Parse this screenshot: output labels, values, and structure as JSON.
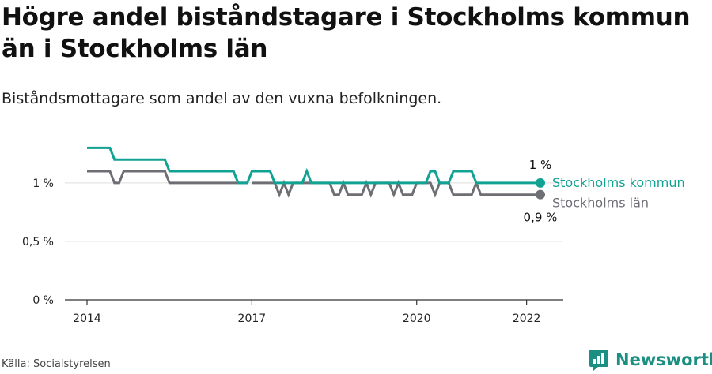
{
  "title": "Högre andel biståndstagare i Stockholms kommun än i Stockholms län",
  "subtitle": "Biståndsmottagare som andel av den vuxna befolkningen.",
  "source": "Källa: Socialstyrelsen",
  "brand": "Newsworthy",
  "colors": {
    "kommun": "#12a293",
    "lan": "#6e6e75",
    "brand": "#1a8f82",
    "grid": "#dddddd"
  },
  "chart_data": {
    "type": "line",
    "title": "Högre andel biståndstagare i Stockholms kommun än i Stockholms län",
    "ylabel": "",
    "xlabel": "",
    "ylim": [
      0,
      1.35
    ],
    "xlim": [
      "2014-01",
      "2022-12"
    ],
    "x_ticks": [
      {
        "value": "2014-01",
        "label": "2014"
      },
      {
        "value": "2017-01",
        "label": "2017"
      },
      {
        "value": "2020-01",
        "label": "2020"
      },
      {
        "value": "2022-01",
        "label": "2022"
      }
    ],
    "y_ticks": [
      {
        "value": 0,
        "label": "0 %"
      },
      {
        "value": 0.5,
        "label": "0,5 %"
      },
      {
        "value": 1,
        "label": "1 %"
      }
    ],
    "series": [
      {
        "name": "Stockholms kommun",
        "end_label": "1 %",
        "points": [
          [
            "2014-01",
            1.3
          ],
          [
            "2014-06",
            1.3
          ],
          [
            "2014-07",
            1.2
          ],
          [
            "2015-06",
            1.2
          ],
          [
            "2015-07",
            1.1
          ],
          [
            "2016-09",
            1.1
          ],
          [
            "2016-10",
            1.0
          ],
          [
            "2016-12",
            1.0
          ],
          [
            "2017-01",
            1.1
          ],
          [
            "2017-05",
            1.1
          ],
          [
            "2017-06",
            1.0
          ],
          [
            "2017-12",
            1.0
          ],
          [
            "2018-01",
            1.1
          ],
          [
            "2018-02",
            1.0
          ],
          [
            "2020-03",
            1.0
          ],
          [
            "2020-04",
            1.1
          ],
          [
            "2020-05",
            1.1
          ],
          [
            "2020-06",
            1.0
          ],
          [
            "2020-08",
            1.0
          ],
          [
            "2020-09",
            1.1
          ],
          [
            "2021-01",
            1.1
          ],
          [
            "2021-02",
            1.0
          ],
          [
            "2022-04",
            1.0
          ]
        ]
      },
      {
        "name": "Stockholms län",
        "end_label": "0,9 %",
        "points": [
          [
            "2014-01",
            1.1
          ],
          [
            "2014-06",
            1.1
          ],
          [
            "2014-07",
            1.0
          ],
          [
            "2014-08",
            1.0
          ],
          [
            "2014-09",
            1.1
          ],
          [
            "2015-06",
            1.1
          ],
          [
            "2015-07",
            1.0
          ],
          [
            "2016-12",
            1.0
          ],
          null,
          [
            "2017-01",
            1.0
          ],
          [
            "2017-06",
            1.0
          ],
          [
            "2017-07",
            0.9
          ],
          [
            "2017-08",
            1.0
          ],
          [
            "2017-09",
            0.9
          ],
          [
            "2017-10",
            1.0
          ],
          [
            "2018-06",
            1.0
          ],
          [
            "2018-07",
            0.9
          ],
          [
            "2018-08",
            0.9
          ],
          [
            "2018-09",
            1.0
          ],
          [
            "2018-10",
            0.9
          ],
          [
            "2019-01",
            0.9
          ],
          [
            "2019-02",
            1.0
          ],
          [
            "2019-03",
            0.9
          ],
          [
            "2019-04",
            1.0
          ],
          [
            "2019-07",
            1.0
          ],
          [
            "2019-08",
            0.9
          ],
          [
            "2019-09",
            1.0
          ],
          [
            "2019-10",
            0.9
          ],
          [
            "2019-12",
            0.9
          ],
          [
            "2020-01",
            1.0
          ],
          [
            "2020-04",
            1.0
          ],
          [
            "2020-05",
            0.9
          ],
          [
            "2020-06",
            1.0
          ],
          [
            "2020-08",
            1.0
          ],
          [
            "2020-09",
            0.9
          ],
          [
            "2021-01",
            0.9
          ],
          [
            "2021-02",
            1.0
          ],
          [
            "2021-03",
            0.9
          ],
          [
            "2022-04",
            0.9
          ]
        ]
      }
    ],
    "grid": true,
    "legend": "end-of-line labels"
  }
}
